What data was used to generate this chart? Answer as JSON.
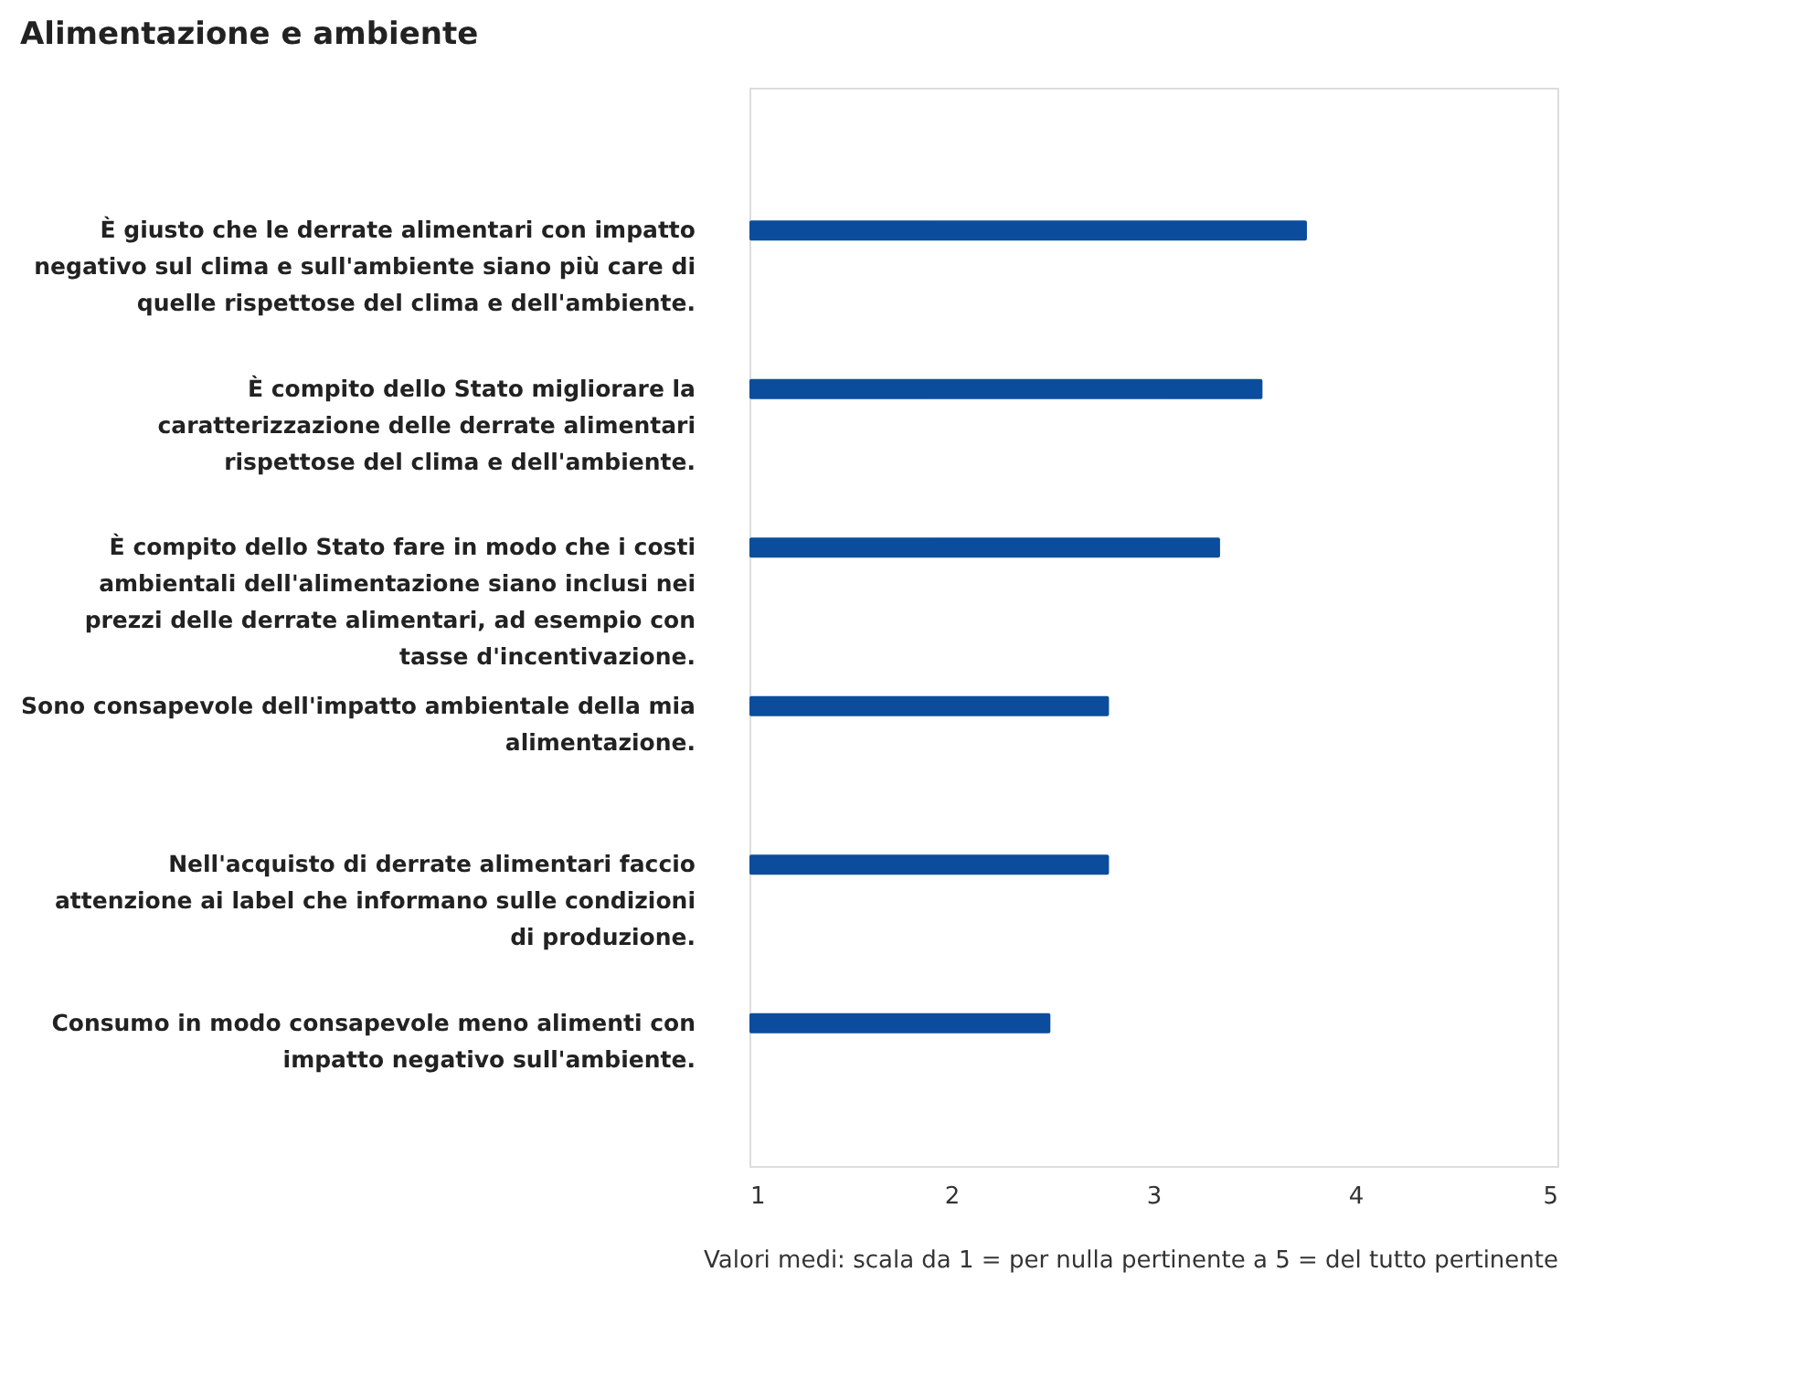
{
  "chart_data": {
    "type": "bar",
    "orientation": "horizontal",
    "title": "Alimentazione e ambiente",
    "categories": [
      "È giusto che le derrate alimentari con impatto negativo sul clima e sull'ambiente siano più care di quelle rispettose del clima e dell'ambiente.",
      "È compito dello Stato migliorare la caratterizzazione delle derrate alimentari rispettose del clima e dell'ambiente.",
      "È compito dello Stato fare in modo che i costi ambientali dell'alimentazione siano inclusi nei prezzi delle derrate alimentari, ad esempio con tasse d'incentivazione.",
      "Sono consapevole dell'impatto ambientale della mia alimentazione.",
      "Nell'acquisto di derrate alimentari faccio attenzione ai label che informano sulle condizioni di produzione.",
      "Consumo in modo consapevole meno alimenti con impatto negativo sull'ambiente."
    ],
    "values": [
      3.76,
      3.54,
      3.33,
      2.78,
      2.78,
      2.49
    ],
    "color": "#0b4d9c",
    "xlim": [
      1,
      5
    ],
    "xticks": [
      1,
      2,
      3,
      4,
      5
    ],
    "grid": false,
    "annotations": [
      "Valori medi: scala da 1 = per nulla pertinente a 5 = del tutto pertinente"
    ]
  }
}
